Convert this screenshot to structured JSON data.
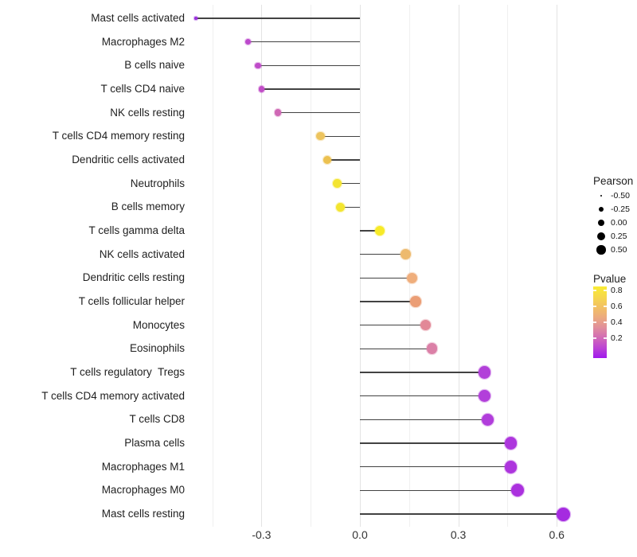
{
  "chart_data": {
    "type": "lollipop",
    "orientation": "horizontal",
    "title": "",
    "xlabel": "",
    "ylabel": "",
    "xlim": [
      -0.55,
      0.68
    ],
    "grid": "vertical-only",
    "x_ticks": [
      {
        "value": -0.3,
        "label": "-0.3"
      },
      {
        "value": 0.0,
        "label": "0.0"
      },
      {
        "value": 0.3,
        "label": "0.3"
      },
      {
        "value": 0.6,
        "label": "0.6"
      }
    ],
    "gridline_values": [
      -0.45,
      -0.3,
      -0.15,
      0.0,
      0.15,
      0.3,
      0.45,
      0.6
    ],
    "major_gridline_values": [
      -0.3,
      0.0,
      0.3,
      0.6
    ],
    "size_encoding": "Pearson correlation (larger = higher)",
    "color_encoding": "Pvalue (purple = low, yellow = high)",
    "rows": [
      {
        "label": "Mast cells activated",
        "pearson": -0.5,
        "pvalue": 0.05,
        "color": "#9a30dc"
      },
      {
        "label": "Macrophages M2",
        "pearson": -0.34,
        "pvalue": 0.2,
        "color": "#bc49cc"
      },
      {
        "label": "B cells naive",
        "pearson": -0.31,
        "pvalue": 0.21,
        "color": "#bf4bc9"
      },
      {
        "label": "T cells CD4 naive",
        "pearson": -0.3,
        "pvalue": 0.22,
        "color": "#c14dc7"
      },
      {
        "label": "NK cells resting",
        "pearson": -0.25,
        "pvalue": 0.27,
        "color": "#cf68b5"
      },
      {
        "label": "T cells CD4 memory resting",
        "pearson": -0.12,
        "pvalue": 0.63,
        "color": "#edc45e"
      },
      {
        "label": "Dendritic cells activated",
        "pearson": -0.1,
        "pvalue": 0.62,
        "color": "#ecc150"
      },
      {
        "label": "Neutrophils",
        "pearson": -0.07,
        "pvalue": 0.78,
        "color": "#f3e431"
      },
      {
        "label": "B cells memory",
        "pearson": -0.06,
        "pvalue": 0.79,
        "color": "#f3e52f"
      },
      {
        "label": "T cells gamma delta",
        "pearson": 0.06,
        "pvalue": 0.82,
        "color": "#f7ea28"
      },
      {
        "label": "NK cells activated",
        "pearson": 0.14,
        "pvalue": 0.57,
        "color": "#edba6e"
      },
      {
        "label": "Dendritic cells resting",
        "pearson": 0.16,
        "pvalue": 0.52,
        "color": "#efae7c"
      },
      {
        "label": "T cells follicular helper",
        "pearson": 0.17,
        "pvalue": 0.47,
        "color": "#eb9e76"
      },
      {
        "label": "Monocytes",
        "pearson": 0.2,
        "pvalue": 0.38,
        "color": "#e28897"
      },
      {
        "label": "Eosinophils",
        "pearson": 0.22,
        "pvalue": 0.33,
        "color": "#db80a7"
      },
      {
        "label": "T cells regulatory  Tregs",
        "pearson": 0.38,
        "pvalue": 0.13,
        "color": "#b240d9"
      },
      {
        "label": "T cells CD4 memory activated",
        "pearson": 0.38,
        "pvalue": 0.13,
        "color": "#b23fda"
      },
      {
        "label": "T cells CD8",
        "pearson": 0.39,
        "pvalue": 0.12,
        "color": "#b13ddb"
      },
      {
        "label": "Plasma cells",
        "pearson": 0.46,
        "pvalue": 0.1,
        "color": "#ad36dd"
      },
      {
        "label": "Macrophages M1",
        "pearson": 0.46,
        "pvalue": 0.1,
        "color": "#ad35dd"
      },
      {
        "label": "Macrophages M0",
        "pearson": 0.48,
        "pvalue": 0.09,
        "color": "#ab31de"
      },
      {
        "label": "Mast cells resting",
        "pearson": 0.62,
        "pvalue": 0.07,
        "color": "#a52be0"
      }
    ],
    "legend_pearson": {
      "title": "Pearson",
      "entries": [
        {
          "value": -0.5,
          "label": "-0.50"
        },
        {
          "value": -0.25,
          "label": "-0.25"
        },
        {
          "value": 0.0,
          "label": "0.00"
        },
        {
          "value": 0.25,
          "label": "0.25"
        },
        {
          "value": 0.5,
          "label": "0.50"
        }
      ],
      "dot_color": "#000000"
    },
    "legend_pvalue": {
      "title": "Pvalue",
      "tick_labels": [
        "0.8",
        "0.6",
        "0.4",
        "0.2"
      ],
      "gradient_bottom_to_top": [
        "#a019ec",
        "#bc44d4",
        "#d26bb6",
        "#e18f9b",
        "#ecab7e",
        "#f2c163",
        "#f6d84b",
        "#f9ec33"
      ]
    }
  }
}
